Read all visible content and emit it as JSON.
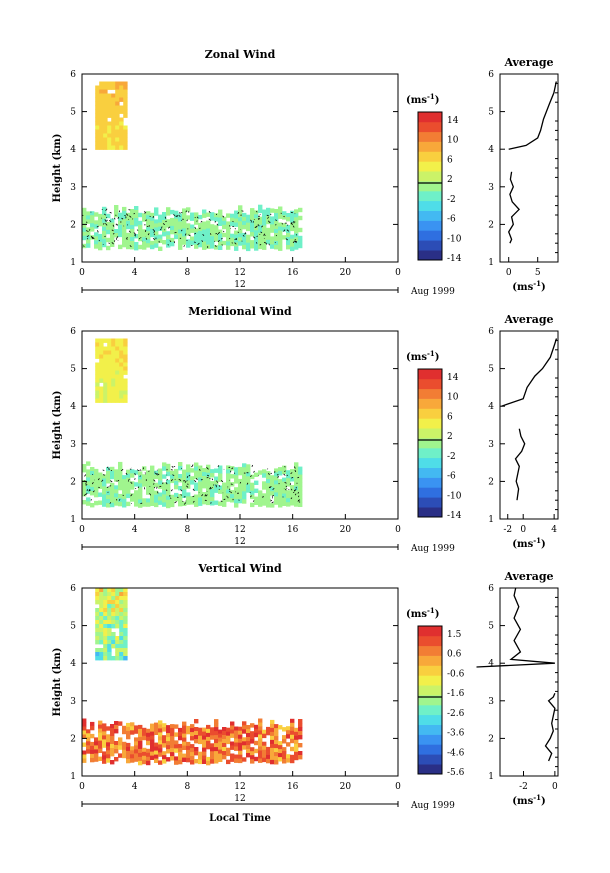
{
  "figure": {
    "date_label": "Aug 1999",
    "date_axis_marker": "12",
    "xlabel": "Local Time",
    "ylabel": "Height (km)",
    "unit_label": "(ms",
    "unit_exp": "-1",
    "unit_close": ")",
    "avg_title": "Average",
    "x_ticks": [
      "0",
      "4",
      "8",
      "12",
      "16",
      "20",
      "0"
    ],
    "y_ticks": [
      "1",
      "2",
      "3",
      "4",
      "5",
      "6"
    ]
  },
  "colorscale": [
    "#2a2f86",
    "#2c4db6",
    "#2f6fe0",
    "#3a93f2",
    "#43b9f2",
    "#4fdde8",
    "#6ff0c8",
    "#a0f58e",
    "#cbf368",
    "#f2f04a",
    "#f9cf3f",
    "#f8a83a",
    "#f27d34",
    "#ea4d2e",
    "#e02f2f"
  ],
  "chart_data": [
    {
      "type": "heatmap",
      "title": "Zonal Wind",
      "xlabel": "",
      "ylabel": "Height (km)",
      "xlim": [
        0,
        24
      ],
      "ylim": [
        1,
        6
      ],
      "colorbar_labels": [
        "14",
        "10",
        "6",
        "2",
        "-2",
        "-6",
        "-10",
        "-14"
      ],
      "value_range": [
        -16,
        16
      ],
      "regions": [
        {
          "x": [
            1.0,
            3.4
          ],
          "y": [
            4.0,
            5.8
          ],
          "v": 5.5,
          "top_y": 5.8
        },
        {
          "x": [
            0.0,
            16.5
          ],
          "y": [
            1.4,
            2.4
          ],
          "v": -1.0
        }
      ],
      "average_profile": {
        "xlabel": "(ms-1)",
        "xticks": [
          "0",
          "5"
        ],
        "xlim": [
          -1.5,
          8.5
        ],
        "height": [
          1.5,
          1.6,
          1.8,
          2.0,
          2.2,
          2.4,
          2.6,
          2.8,
          3.0,
          3.2,
          3.4,
          4.0,
          4.1,
          4.3,
          4.5,
          4.8,
          5.0,
          5.2,
          5.5,
          5.8
        ],
        "value": [
          0.2,
          0.5,
          0.0,
          0.8,
          0.5,
          1.8,
          0.6,
          0.2,
          0.8,
          0.3,
          0.5,
          0.0,
          3.0,
          5.0,
          5.5,
          6.0,
          6.5,
          7.0,
          7.8,
          8.2
        ]
      }
    },
    {
      "type": "heatmap",
      "title": "Meridional Wind",
      "xlabel": "",
      "ylabel": "Height (km)",
      "xlim": [
        0,
        24
      ],
      "ylim": [
        1,
        6
      ],
      "colorbar_labels": [
        "14",
        "10",
        "6",
        "2",
        "-2",
        "-6",
        "-10",
        "-14"
      ],
      "value_range": [
        -16,
        16
      ],
      "regions": [
        {
          "x": [
            1.0,
            3.4
          ],
          "y": [
            4.2,
            5.8
          ],
          "v": 3.5,
          "top_y": 5.8
        },
        {
          "x": [
            0.0,
            16.5
          ],
          "y": [
            1.4,
            2.4
          ],
          "v": -0.5
        }
      ],
      "average_profile": {
        "xlabel": "(ms-1)",
        "xticks": [
          "-2",
          "0",
          "4"
        ],
        "xlim": [
          -3,
          4.5
        ],
        "height": [
          1.5,
          1.8,
          2.0,
          2.4,
          2.6,
          2.8,
          3.0,
          3.2,
          3.4,
          4.0,
          4.2,
          4.5,
          4.8,
          5.0,
          5.3,
          5.6,
          5.8
        ],
        "value": [
          -0.8,
          -0.6,
          -0.9,
          -0.5,
          -1.0,
          -0.2,
          0.2,
          -0.3,
          -0.5,
          -2.8,
          0.0,
          0.5,
          1.5,
          2.5,
          3.5,
          4.0,
          4.3
        ]
      }
    },
    {
      "type": "heatmap",
      "title": "Vertical Wind",
      "xlabel": "Local Time",
      "ylabel": "Height (km)",
      "xlim": [
        0,
        24
      ],
      "ylim": [
        1,
        6
      ],
      "colorbar_labels": [
        "1.5",
        "0.6",
        "-0.6",
        "-1.6",
        "-2.6",
        "-3.6",
        "-4.6",
        "-5.6"
      ],
      "value_range": [
        -6.1,
        2.0
      ],
      "regions": [
        {
          "x": [
            1.0,
            3.4
          ],
          "y": [
            4.1,
            6.0
          ],
          "v": -2.6,
          "top_y": 6.0
        },
        {
          "x": [
            0.0,
            16.5
          ],
          "y": [
            1.4,
            2.4
          ],
          "v": 0.7
        }
      ],
      "average_profile": {
        "xlabel": "(ms-1)",
        "xticks": [
          "-2",
          "0"
        ],
        "xlim": [
          -3.5,
          0.2
        ],
        "height": [
          1.4,
          1.6,
          1.8,
          2.0,
          2.2,
          2.4,
          2.6,
          2.8,
          3.0,
          3.1,
          3.2,
          3.9,
          4.0,
          4.1,
          4.3,
          4.6,
          4.9,
          5.2,
          5.5,
          5.8,
          6.0
        ],
        "value": [
          -0.4,
          -0.2,
          -0.6,
          -0.3,
          -0.1,
          -0.2,
          -0.1,
          0.0,
          -0.4,
          -0.1,
          0.0,
          -5.0,
          0.0,
          -2.8,
          -2.2,
          -2.6,
          -2.2,
          -2.6,
          -2.3,
          -2.6,
          -2.5
        ]
      }
    }
  ]
}
